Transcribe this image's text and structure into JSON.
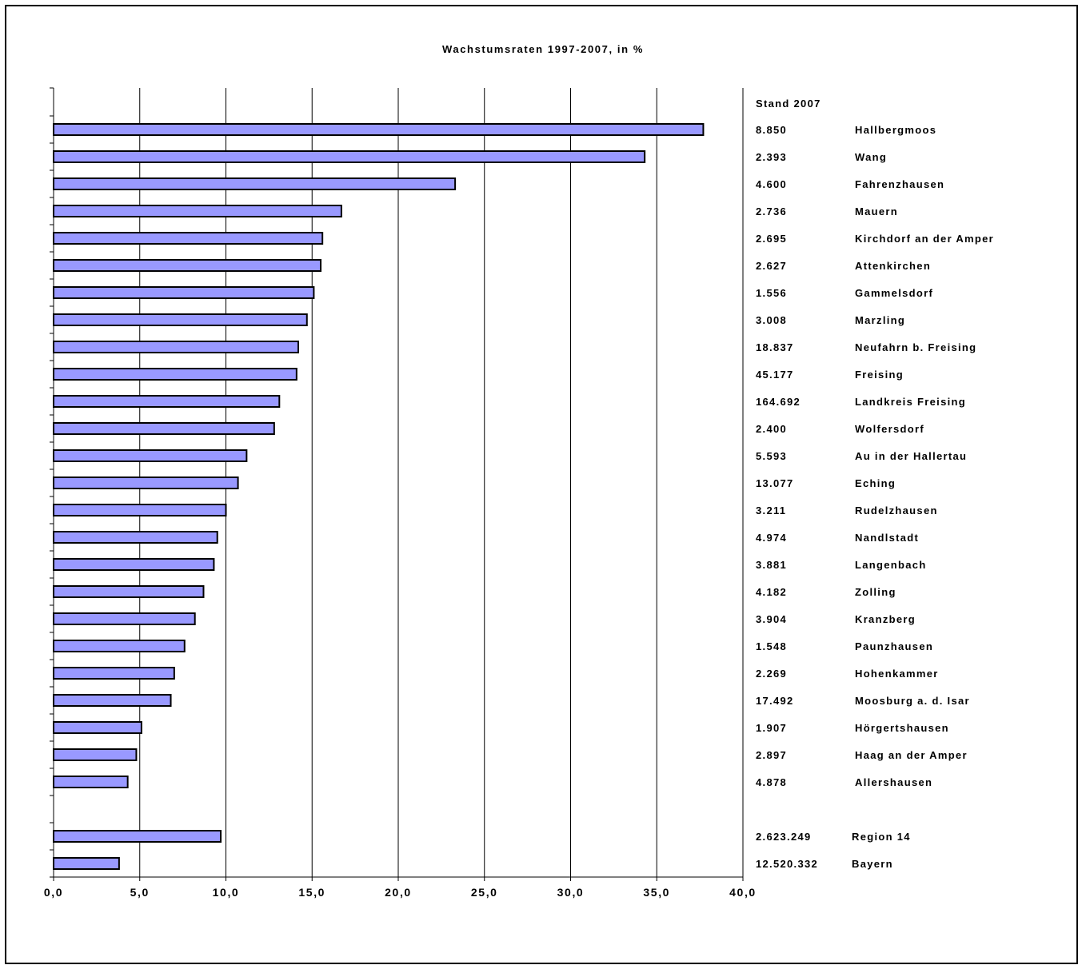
{
  "chart_data": {
    "type": "bar",
    "orientation": "horizontal",
    "title": "Wachstumsraten 1997-2007, in %",
    "xlim": [
      0,
      40
    ],
    "x_ticks": [
      "0,0",
      "5,0",
      "10,0",
      "15,0",
      "20,0",
      "25,0",
      "30,0",
      "35,0",
      "40,0"
    ],
    "grid": "vertical",
    "bar_color": "#9999ff",
    "stand_header": "Stand 2007",
    "rows": [
      {
        "name": "Hallbergmoos",
        "stand": "8.850",
        "value": 37.7
      },
      {
        "name": "Wang",
        "stand": "2.393",
        "value": 34.3
      },
      {
        "name": "Fahrenzhausen",
        "stand": "4.600",
        "value": 23.3
      },
      {
        "name": "Mauern",
        "stand": "2.736",
        "value": 16.7
      },
      {
        "name": "Kirchdorf an der Amper",
        "stand": "2.695",
        "value": 15.6
      },
      {
        "name": "Attenkirchen",
        "stand": "2.627",
        "value": 15.5
      },
      {
        "name": "Gammelsdorf",
        "stand": "1.556",
        "value": 15.1
      },
      {
        "name": "Marzling",
        "stand": "3.008",
        "value": 14.7
      },
      {
        "name": "Neufahrn b. Freising",
        "stand": "18.837",
        "value": 14.2
      },
      {
        "name": "Freising",
        "stand": "45.177",
        "value": 14.1
      },
      {
        "name": "Landkreis Freising",
        "stand": "164.692",
        "value": 13.1
      },
      {
        "name": "Wolfersdorf",
        "stand": "2.400",
        "value": 12.8
      },
      {
        "name": "Au in der Hallertau",
        "stand": "5.593",
        "value": 11.2
      },
      {
        "name": "Eching",
        "stand": "13.077",
        "value": 10.7
      },
      {
        "name": "Rudelzhausen",
        "stand": "3.211",
        "value": 10.0
      },
      {
        "name": "Nandlstadt",
        "stand": "4.974",
        "value": 9.5
      },
      {
        "name": "Langenbach",
        "stand": "3.881",
        "value": 9.3
      },
      {
        "name": "Zolling",
        "stand": "4.182",
        "value": 8.7
      },
      {
        "name": "Kranzberg",
        "stand": "3.904",
        "value": 8.2
      },
      {
        "name": "Paunzhausen",
        "stand": "1.548",
        "value": 7.6
      },
      {
        "name": "Hohenkammer",
        "stand": "2.269",
        "value": 7.0
      },
      {
        "name": "Moosburg a. d. Isar",
        "stand": "17.492",
        "value": 6.8
      },
      {
        "name": "Hörgertshausen",
        "stand": "1.907",
        "value": 5.1
      },
      {
        "name": "Haag an der Amper",
        "stand": "2.897",
        "value": 4.8
      },
      {
        "name": "Allershausen",
        "stand": "4.878",
        "value": 4.3
      },
      {
        "name": "",
        "stand": "",
        "value": null
      },
      {
        "name": "Region 14",
        "stand": "2.623.249",
        "value": 9.7
      },
      {
        "name": "Bayern",
        "stand": "12.520.332",
        "value": 3.8
      }
    ]
  }
}
